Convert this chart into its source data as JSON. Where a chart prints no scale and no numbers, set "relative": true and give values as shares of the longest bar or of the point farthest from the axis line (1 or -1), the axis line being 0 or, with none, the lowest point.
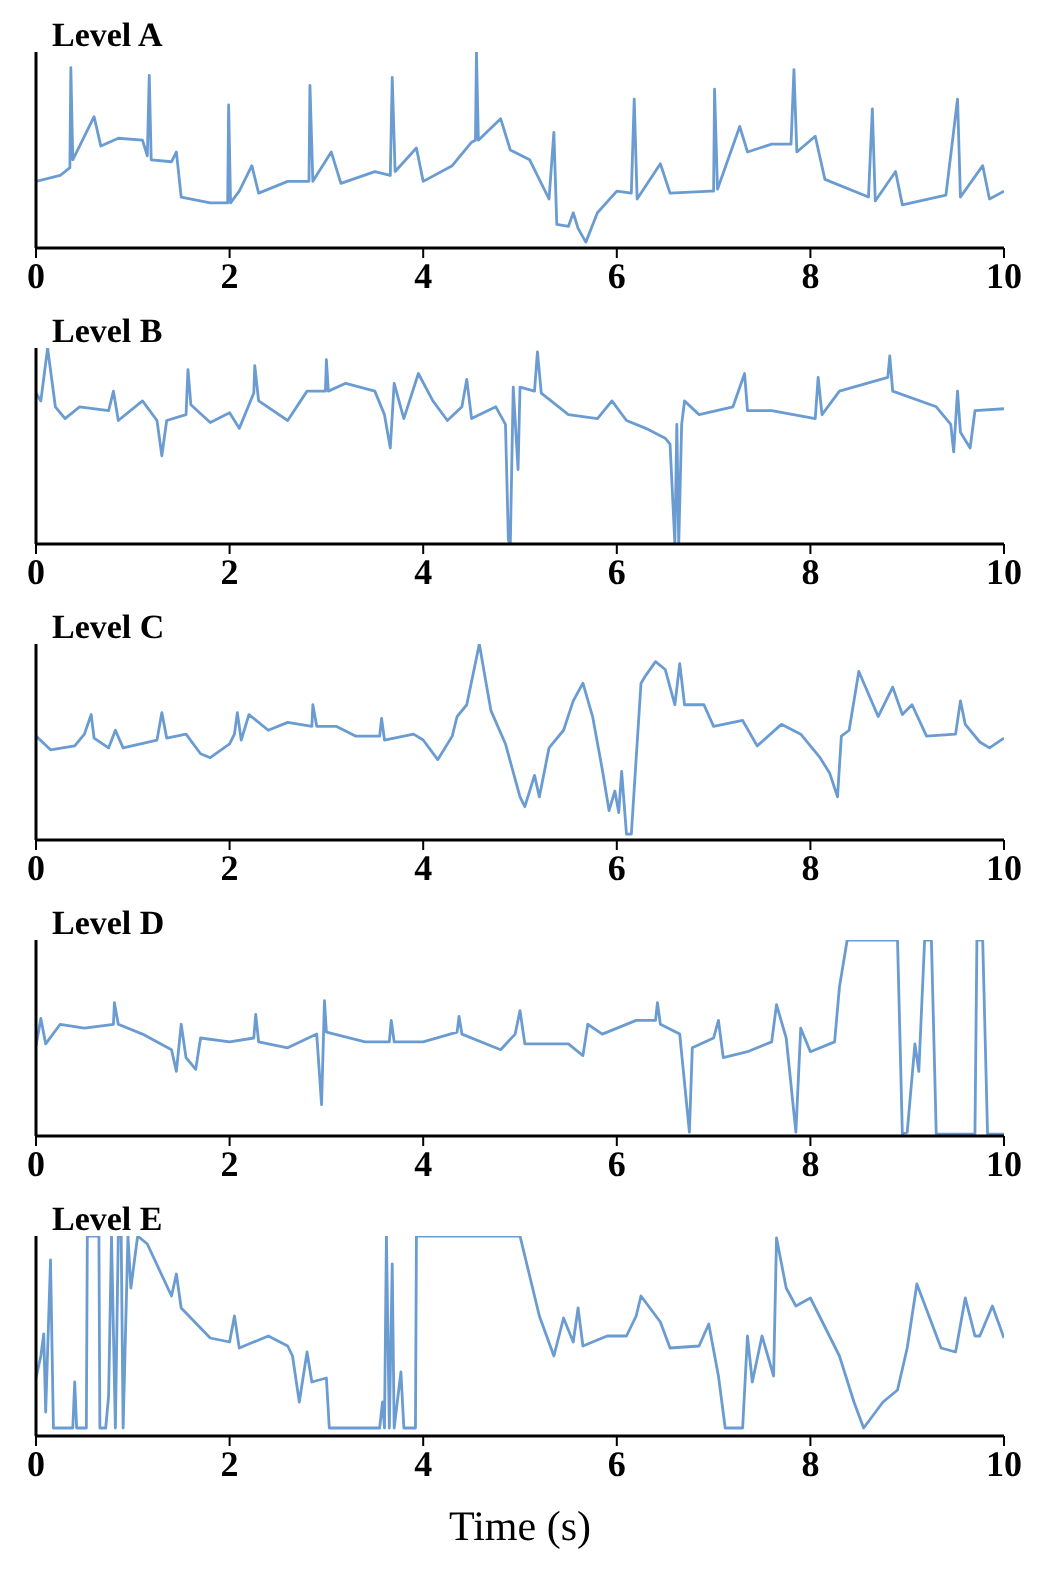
{
  "chart_data": [
    {
      "type": "line",
      "title": "Level A",
      "relative": true,
      "xlim": [
        0,
        10
      ],
      "xticks": [
        0,
        2,
        4,
        6,
        8,
        10
      ],
      "color": "#6a9bd1",
      "x": [
        0,
        0.25,
        0.35,
        0.36,
        0.38,
        0.6,
        0.67,
        0.85,
        1.1,
        1.15,
        1.17,
        1.19,
        1.4,
        1.45,
        1.5,
        1.8,
        1.98,
        1.99,
        2.01,
        2.1,
        2.23,
        2.3,
        2.6,
        2.82,
        2.83,
        2.86,
        3.05,
        3.15,
        3.5,
        3.66,
        3.68,
        3.71,
        3.93,
        4.0,
        4.3,
        4.5,
        4.54,
        4.55,
        4.57,
        4.8,
        4.9,
        5.1,
        5.3,
        5.35,
        5.38,
        5.5,
        5.55,
        5.6,
        5.68,
        5.8,
        6.0,
        6.15,
        6.18,
        6.21,
        6.45,
        6.55,
        6.97,
        7.0,
        7.01,
        7.04,
        7.27,
        7.35,
        7.6,
        7.8,
        7.83,
        7.86,
        8.05,
        8.15,
        8.6,
        8.64,
        8.67,
        8.88,
        8.95,
        9.4,
        9.52,
        9.55,
        9.78,
        9.85,
        10
      ],
      "values": [
        0.34,
        0.37,
        0.41,
        0.92,
        0.45,
        0.67,
        0.52,
        0.56,
        0.55,
        0.47,
        0.88,
        0.45,
        0.44,
        0.49,
        0.26,
        0.23,
        0.23,
        0.73,
        0.23,
        0.29,
        0.42,
        0.28,
        0.34,
        0.34,
        0.83,
        0.34,
        0.49,
        0.33,
        0.39,
        0.37,
        0.87,
        0.39,
        0.51,
        0.34,
        0.42,
        0.54,
        0.55,
        1.0,
        0.55,
        0.66,
        0.5,
        0.45,
        0.25,
        0.59,
        0.12,
        0.11,
        0.18,
        0.1,
        0.03,
        0.18,
        0.29,
        0.28,
        0.76,
        0.25,
        0.43,
        0.28,
        0.29,
        0.29,
        0.81,
        0.3,
        0.62,
        0.49,
        0.53,
        0.53,
        0.91,
        0.49,
        0.57,
        0.35,
        0.26,
        0.71,
        0.24,
        0.39,
        0.22,
        0.27,
        0.76,
        0.26,
        0.42,
        0.25,
        0.29
      ]
    },
    {
      "type": "line",
      "title": "Level B",
      "relative": true,
      "xlim": [
        0,
        10
      ],
      "xticks": [
        0,
        2,
        4,
        6,
        8,
        10
      ],
      "color": "#6a9bd1",
      "x": [
        0,
        0.05,
        0.12,
        0.2,
        0.3,
        0.45,
        0.75,
        0.8,
        0.85,
        1.1,
        1.25,
        1.3,
        1.35,
        1.55,
        1.57,
        1.6,
        1.8,
        2.0,
        2.1,
        2.25,
        2.26,
        2.3,
        2.6,
        2.8,
        2.99,
        3.0,
        3.02,
        3.2,
        3.5,
        3.6,
        3.66,
        3.7,
        3.8,
        3.95,
        4.1,
        4.25,
        4.4,
        4.45,
        4.5,
        4.75,
        4.85,
        4.88,
        4.9,
        4.93,
        4.98,
        5.0,
        5.15,
        5.18,
        5.22,
        5.5,
        5.8,
        5.95,
        6.1,
        6.3,
        6.5,
        6.55,
        6.6,
        6.62,
        6.64,
        6.67,
        6.7,
        6.85,
        7.2,
        7.32,
        7.35,
        7.6,
        8.05,
        8.08,
        8.12,
        8.3,
        8.8,
        8.82,
        8.85,
        9.3,
        9.45,
        9.48,
        9.52,
        9.55,
        9.65,
        9.7,
        10
      ],
      "values": [
        0.77,
        0.73,
        1.0,
        0.7,
        0.64,
        0.7,
        0.68,
        0.78,
        0.63,
        0.73,
        0.63,
        0.45,
        0.63,
        0.66,
        0.89,
        0.71,
        0.62,
        0.67,
        0.59,
        0.77,
        0.91,
        0.73,
        0.63,
        0.78,
        0.78,
        0.94,
        0.78,
        0.82,
        0.78,
        0.66,
        0.49,
        0.82,
        0.64,
        0.87,
        0.73,
        0.63,
        0.7,
        0.84,
        0.64,
        0.7,
        0.61,
        0.02,
        0,
        0.8,
        0.38,
        0.8,
        0.78,
        0.98,
        0.77,
        0.66,
        0.64,
        0.73,
        0.63,
        0.59,
        0.54,
        0.51,
        0,
        0.61,
        0,
        0.61,
        0.73,
        0.66,
        0.7,
        0.87,
        0.68,
        0.68,
        0.64,
        0.85,
        0.66,
        0.78,
        0.85,
        0.96,
        0.78,
        0.7,
        0.61,
        0.47,
        0.78,
        0.57,
        0.49,
        0.68,
        0.69
      ]
    },
    {
      "type": "line",
      "title": "Level C",
      "relative": true,
      "xlim": [
        0,
        10
      ],
      "xticks": [
        0,
        2,
        4,
        6,
        8,
        10
      ],
      "color": "#6a9bd1",
      "x": [
        0,
        0.15,
        0.4,
        0.5,
        0.57,
        0.6,
        0.75,
        0.82,
        0.9,
        1.25,
        1.3,
        1.35,
        1.55,
        1.7,
        1.8,
        2.0,
        2.05,
        2.08,
        2.12,
        2.2,
        2.4,
        2.6,
        2.85,
        2.86,
        2.9,
        3.1,
        3.3,
        3.55,
        3.57,
        3.6,
        3.9,
        4.0,
        4.15,
        4.3,
        4.35,
        4.45,
        4.58,
        4.65,
        4.7,
        4.85,
        5.0,
        5.05,
        5.15,
        5.2,
        5.3,
        5.45,
        5.55,
        5.65,
        5.75,
        5.85,
        5.92,
        5.98,
        6.02,
        6.05,
        6.1,
        6.15,
        6.25,
        6.3,
        6.4,
        6.5,
        6.6,
        6.65,
        6.7,
        6.9,
        7.0,
        7.3,
        7.45,
        7.7,
        7.9,
        8.1,
        8.2,
        8.28,
        8.32,
        8.4,
        8.5,
        8.7,
        8.85,
        8.95,
        9.05,
        9.2,
        9.5,
        9.55,
        9.6,
        9.75,
        9.85,
        10
      ],
      "values": [
        0.53,
        0.46,
        0.48,
        0.54,
        0.64,
        0.52,
        0.47,
        0.56,
        0.47,
        0.51,
        0.65,
        0.52,
        0.54,
        0.44,
        0.42,
        0.49,
        0.54,
        0.65,
        0.51,
        0.64,
        0.56,
        0.6,
        0.58,
        0.69,
        0.58,
        0.58,
        0.53,
        0.53,
        0.62,
        0.51,
        0.54,
        0.51,
        0.41,
        0.53,
        0.63,
        0.69,
        1.0,
        0.8,
        0.66,
        0.49,
        0.22,
        0.17,
        0.33,
        0.22,
        0.47,
        0.56,
        0.71,
        0.8,
        0.63,
        0.36,
        0.15,
        0.25,
        0.14,
        0.35,
        0.03,
        0.03,
        0.8,
        0.84,
        0.91,
        0.87,
        0.69,
        0.9,
        0.69,
        0.69,
        0.58,
        0.61,
        0.48,
        0.59,
        0.54,
        0.42,
        0.34,
        0.22,
        0.53,
        0.56,
        0.86,
        0.63,
        0.78,
        0.64,
        0.69,
        0.53,
        0.54,
        0.71,
        0.59,
        0.5,
        0.47,
        0.52
      ]
    },
    {
      "type": "line",
      "title": "Level D",
      "relative": true,
      "xlim": [
        0,
        10
      ],
      "xticks": [
        0,
        2,
        4,
        6,
        8,
        10
      ],
      "color": "#6a9bd1",
      "x": [
        0,
        0.05,
        0.1,
        0.25,
        0.5,
        0.8,
        0.81,
        0.85,
        1.1,
        1.4,
        1.45,
        1.5,
        1.55,
        1.65,
        1.7,
        2.0,
        2.25,
        2.27,
        2.3,
        2.6,
        2.9,
        2.95,
        2.98,
        3.0,
        3.4,
        3.65,
        3.67,
        3.7,
        4.0,
        4.35,
        4.37,
        4.4,
        4.8,
        4.95,
        5.0,
        5.05,
        5.5,
        5.65,
        5.7,
        5.85,
        6.2,
        6.4,
        6.42,
        6.45,
        6.65,
        6.75,
        6.78,
        7.0,
        7.05,
        7.1,
        7.35,
        7.6,
        7.65,
        7.75,
        7.85,
        7.9,
        8.0,
        8.25,
        8.3,
        8.38,
        8.9,
        8.95,
        9.0,
        9.08,
        9.12,
        9.18,
        9.25,
        9.3,
        9.7,
        9.72,
        9.78,
        9.83,
        10
      ],
      "values": [
        0.46,
        0.6,
        0.47,
        0.57,
        0.55,
        0.57,
        0.68,
        0.57,
        0.52,
        0.44,
        0.33,
        0.57,
        0.4,
        0.34,
        0.5,
        0.48,
        0.5,
        0.62,
        0.48,
        0.45,
        0.52,
        0.16,
        0.69,
        0.53,
        0.48,
        0.48,
        0.59,
        0.48,
        0.48,
        0.53,
        0.61,
        0.52,
        0.44,
        0.52,
        0.64,
        0.47,
        0.47,
        0.41,
        0.57,
        0.52,
        0.59,
        0.59,
        0.68,
        0.57,
        0.52,
        0.02,
        0.45,
        0.5,
        0.59,
        0.4,
        0.43,
        0.48,
        0.67,
        0.5,
        0.02,
        0.55,
        0.43,
        0.48,
        0.76,
        1.0,
        1.0,
        0.01,
        0.02,
        0.47,
        0.33,
        1.0,
        1.0,
        0.01,
        0.01,
        1.0,
        1.0,
        0.01,
        0.01
      ]
    },
    {
      "type": "line",
      "title": "Level E",
      "xlabel": "Time (s)",
      "relative": true,
      "xlim": [
        0,
        10
      ],
      "xticks": [
        0,
        2,
        4,
        6,
        8,
        10
      ],
      "color": "#6a9bd1",
      "x": [
        0,
        0.05,
        0.08,
        0.1,
        0.15,
        0.18,
        0.38,
        0.4,
        0.42,
        0.52,
        0.53,
        0.65,
        0.66,
        0.72,
        0.75,
        0.78,
        0.82,
        0.85,
        0.88,
        0.9,
        0.95,
        0.98,
        1.05,
        1.15,
        1.4,
        1.45,
        1.5,
        1.8,
        2.0,
        2.05,
        2.1,
        2.4,
        2.6,
        2.65,
        2.72,
        2.8,
        2.85,
        3.0,
        3.03,
        3.55,
        3.58,
        3.6,
        3.62,
        3.65,
        3.68,
        3.7,
        3.77,
        3.8,
        3.92,
        3.93,
        5.0,
        5.2,
        5.35,
        5.45,
        5.55,
        5.6,
        5.65,
        5.9,
        6.1,
        6.2,
        6.25,
        6.45,
        6.55,
        6.85,
        6.95,
        7.05,
        7.12,
        7.3,
        7.35,
        7.4,
        7.5,
        7.62,
        7.65,
        7.75,
        7.85,
        8.0,
        8.3,
        8.45,
        8.55,
        8.75,
        8.9,
        9.0,
        9.1,
        9.35,
        9.5,
        9.6,
        9.7,
        9.75,
        9.88,
        10
      ],
      "values": [
        0.29,
        0.4,
        0.51,
        0.12,
        0.88,
        0.04,
        0.04,
        0.27,
        0.04,
        0.04,
        1.0,
        1.0,
        0.04,
        0.04,
        0.2,
        1.0,
        0.04,
        1.0,
        1.0,
        0.04,
        1.0,
        0.74,
        1.0,
        0.96,
        0.7,
        0.81,
        0.64,
        0.49,
        0.47,
        0.6,
        0.44,
        0.5,
        0.45,
        0.4,
        0.17,
        0.42,
        0.27,
        0.29,
        0.04,
        0.04,
        0.17,
        0.04,
        1.0,
        0.04,
        0.86,
        0.04,
        0.32,
        0.04,
        0.04,
        1.0,
        1.0,
        0.6,
        0.4,
        0.59,
        0.47,
        0.64,
        0.45,
        0.5,
        0.5,
        0.6,
        0.7,
        0.57,
        0.44,
        0.45,
        0.56,
        0.3,
        0.04,
        0.04,
        0.5,
        0.27,
        0.5,
        0.3,
        0.99,
        0.74,
        0.65,
        0.69,
        0.4,
        0.17,
        0.04,
        0.17,
        0.23,
        0.44,
        0.76,
        0.44,
        0.42,
        0.69,
        0.5,
        0.5,
        0.65,
        0.49
      ]
    }
  ]
}
